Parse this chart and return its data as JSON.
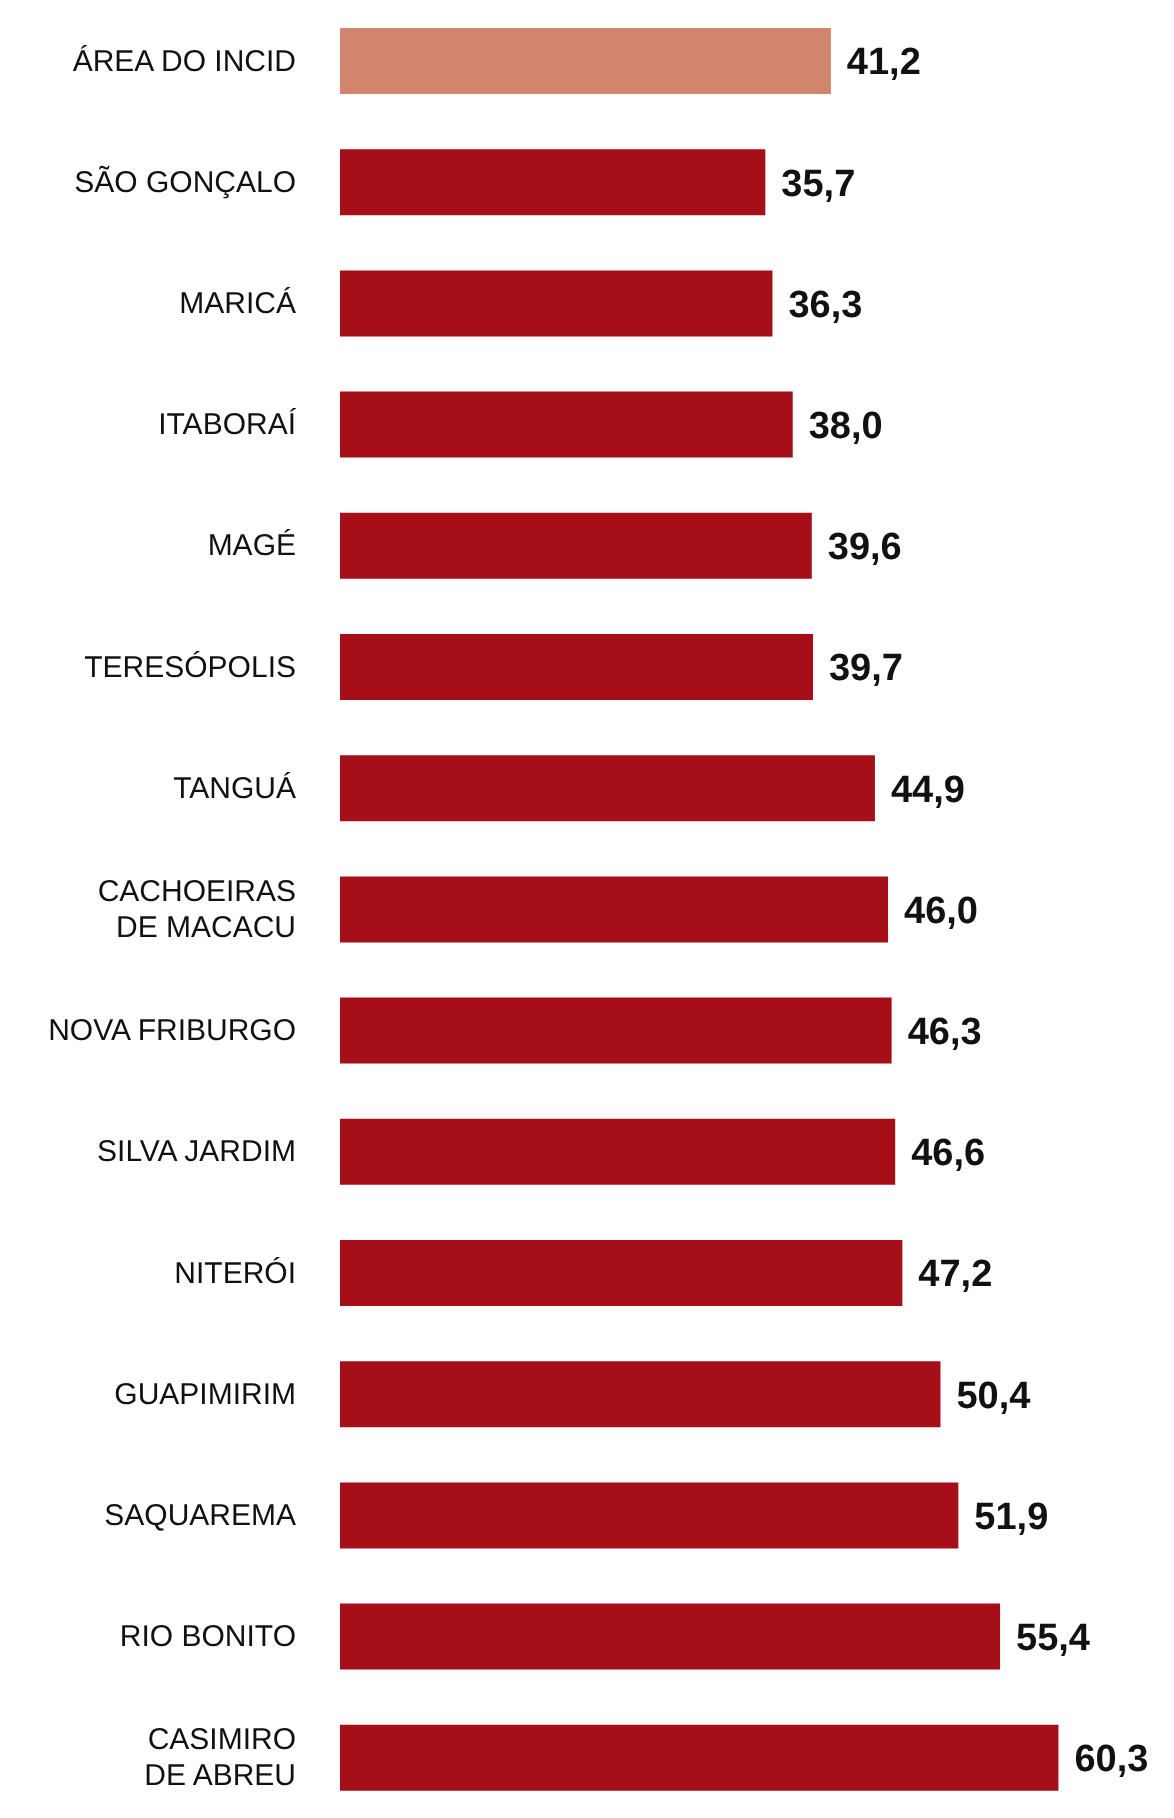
{
  "chart_data": {
    "type": "bar",
    "orientation": "horizontal",
    "tick_labels": "y",
    "xlim": [
      0,
      70
    ],
    "categories": [
      "ÁREA DO INCID",
      "SÃO GONÇALO",
      "MARICÁ",
      "ITABORAÍ",
      "MAGÉ",
      "TERESÓPOLIS",
      "TANGUÁ",
      "CACHOEIRAS DE MACACU",
      "NOVA FRIBURGO",
      "SILVA JARDIM",
      "NITERÓI",
      "GUAPIMIRIM",
      "SAQUAREMA",
      "RIO BONITO",
      "CASIMIRO DE ABREU"
    ],
    "values": [
      41.2,
      35.7,
      36.3,
      38.0,
      39.6,
      39.7,
      44.9,
      46.0,
      46.3,
      46.6,
      47.2,
      50.4,
      51.9,
      55.4,
      60.3
    ],
    "colors": [
      "#d0856c",
      "#a60f18",
      "#a60f18",
      "#a60f18",
      "#a60f18",
      "#a60f18",
      "#a60f18",
      "#a60f18",
      "#a60f18",
      "#a60f18",
      "#a60f18",
      "#a60f18",
      "#a60f18",
      "#a60f18",
      "#a60f18"
    ],
    "value_labels": [
      "41,2",
      "35,7",
      "36,3",
      "38,0",
      "39,6",
      "39,7",
      "44,9",
      "46,0",
      "46,3",
      "46,6",
      "47,2",
      "50,4",
      "51,9",
      "55,4",
      "60,3"
    ]
  }
}
